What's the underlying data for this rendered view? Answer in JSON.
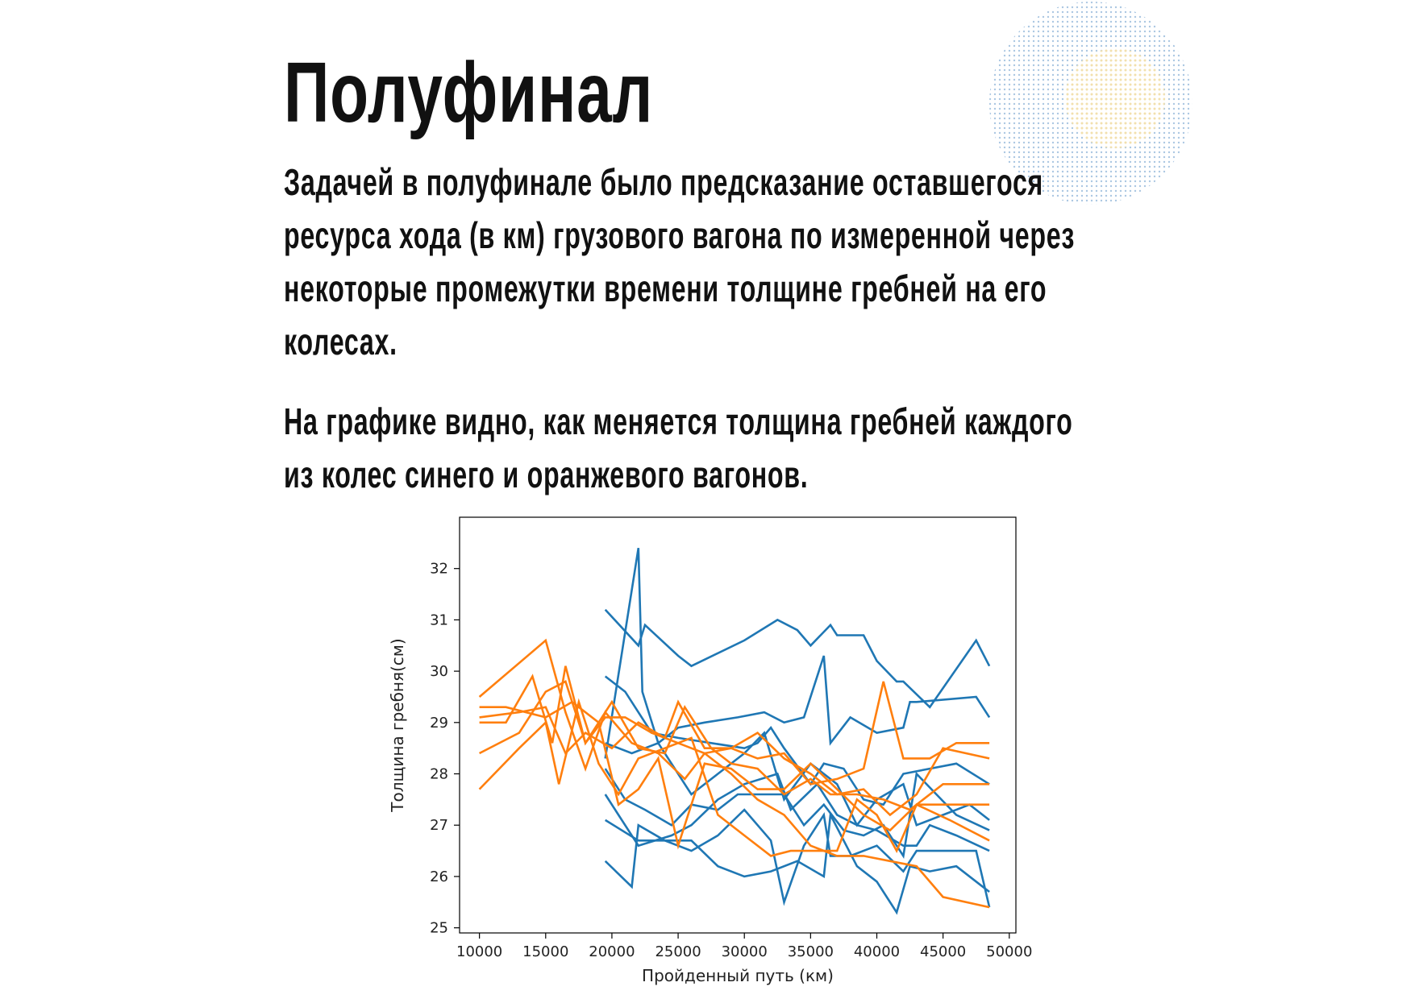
{
  "slide": {
    "title": "Полуфинал",
    "paragraph1": "Задачей в полуфинале было предсказание оставшегося ресурса хода (в км) грузового вагона по измеренной через некоторые промежутки времени толщине гребней на его колесах.",
    "paragraph2": "На графике видно, как меняется толщина гребней каждого из колес синего и оранжевого вагонов."
  },
  "chart_data": {
    "type": "line",
    "title": "",
    "xlabel": "Пройденный путь (км)",
    "ylabel": "Толщина гребня(см)",
    "xlim": [
      8500,
      50500
    ],
    "ylim": [
      24.9,
      33.0
    ],
    "xticks": [
      10000,
      15000,
      20000,
      25000,
      30000,
      35000,
      40000,
      45000,
      50000
    ],
    "yticks": [
      25,
      26,
      27,
      28,
      29,
      30,
      31,
      32
    ],
    "grid": false,
    "legend": "none",
    "colors": {
      "blue": "#1f77b4",
      "orange": "#ff7f0e"
    },
    "series": [
      {
        "color": "blue",
        "points": [
          [
            19500,
            31.2
          ],
          [
            22000,
            30.5
          ],
          [
            22500,
            30.9
          ],
          [
            25000,
            30.3
          ],
          [
            26000,
            30.1
          ],
          [
            30000,
            30.6
          ],
          [
            32500,
            31.0
          ],
          [
            34000,
            30.8
          ],
          [
            35000,
            30.5
          ],
          [
            36500,
            30.9
          ],
          [
            37000,
            30.7
          ],
          [
            39000,
            30.7
          ],
          [
            40000,
            30.2
          ],
          [
            41500,
            29.8
          ],
          [
            42000,
            29.8
          ],
          [
            44000,
            29.3
          ],
          [
            47500,
            30.6
          ],
          [
            48500,
            30.1
          ]
        ]
      },
      {
        "color": "blue",
        "points": [
          [
            19500,
            28.3
          ],
          [
            22000,
            32.4
          ],
          [
            22300,
            29.6
          ],
          [
            23500,
            28.6
          ],
          [
            25000,
            28.9
          ],
          [
            27000,
            29.0
          ],
          [
            29500,
            29.1
          ],
          [
            31500,
            29.2
          ],
          [
            33000,
            29.0
          ],
          [
            34500,
            29.1
          ],
          [
            36000,
            30.3
          ],
          [
            36500,
            28.6
          ],
          [
            38000,
            29.1
          ],
          [
            40000,
            28.8
          ],
          [
            42000,
            28.9
          ],
          [
            42500,
            29.4
          ],
          [
            43000,
            29.4
          ],
          [
            47500,
            29.5
          ],
          [
            48500,
            29.1
          ]
        ]
      },
      {
        "color": "blue",
        "points": [
          [
            19500,
            29.9
          ],
          [
            21000,
            29.6
          ],
          [
            23000,
            28.8
          ],
          [
            25000,
            28.7
          ],
          [
            27500,
            28.6
          ],
          [
            30000,
            28.5
          ],
          [
            31000,
            28.6
          ],
          [
            32000,
            28.9
          ],
          [
            33000,
            28.5
          ],
          [
            35000,
            27.8
          ],
          [
            36000,
            28.2
          ],
          [
            37500,
            28.1
          ],
          [
            39000,
            27.5
          ],
          [
            40500,
            27.4
          ],
          [
            42000,
            28.0
          ],
          [
            44000,
            28.1
          ],
          [
            46000,
            28.2
          ],
          [
            48500,
            27.8
          ]
        ]
      },
      {
        "color": "blue",
        "points": [
          [
            19500,
            28.6
          ],
          [
            21500,
            28.4
          ],
          [
            23500,
            28.6
          ],
          [
            26000,
            27.6
          ],
          [
            28000,
            28.0
          ],
          [
            30000,
            28.4
          ],
          [
            31500,
            28.8
          ],
          [
            33000,
            27.5
          ],
          [
            35000,
            28.2
          ],
          [
            37000,
            27.8
          ],
          [
            38500,
            27.0
          ],
          [
            40000,
            27.5
          ],
          [
            42000,
            27.8
          ],
          [
            43000,
            27.0
          ],
          [
            45000,
            27.2
          ],
          [
            47000,
            27.4
          ],
          [
            48500,
            27.1
          ]
        ]
      },
      {
        "color": "blue",
        "points": [
          [
            19500,
            27.6
          ],
          [
            20500,
            27.2
          ],
          [
            22000,
            26.6
          ],
          [
            24500,
            26.8
          ],
          [
            26000,
            27.0
          ],
          [
            28000,
            27.5
          ],
          [
            30000,
            27.8
          ],
          [
            32500,
            28.0
          ],
          [
            33500,
            27.3
          ],
          [
            35500,
            27.8
          ],
          [
            37000,
            27.2
          ],
          [
            38500,
            27.0
          ],
          [
            40000,
            26.9
          ],
          [
            42000,
            26.6
          ],
          [
            43000,
            26.6
          ],
          [
            44000,
            27.0
          ],
          [
            46000,
            26.8
          ],
          [
            48500,
            26.5
          ]
        ]
      },
      {
        "color": "blue",
        "points": [
          [
            19500,
            28.1
          ],
          [
            21000,
            27.5
          ],
          [
            22500,
            27.3
          ],
          [
            24500,
            27.0
          ],
          [
            26000,
            27.4
          ],
          [
            28000,
            27.3
          ],
          [
            29500,
            27.6
          ],
          [
            31000,
            27.6
          ],
          [
            33000,
            27.6
          ],
          [
            34500,
            27.0
          ],
          [
            36000,
            27.4
          ],
          [
            37500,
            26.9
          ],
          [
            39000,
            26.8
          ],
          [
            40500,
            27.0
          ],
          [
            42000,
            26.4
          ],
          [
            43000,
            28.0
          ],
          [
            44500,
            27.6
          ],
          [
            46000,
            27.2
          ],
          [
            48500,
            26.9
          ]
        ]
      },
      {
        "color": "blue",
        "points": [
          [
            19500,
            26.3
          ],
          [
            21500,
            25.8
          ],
          [
            22000,
            27.0
          ],
          [
            24000,
            26.7
          ],
          [
            26000,
            26.5
          ],
          [
            28000,
            26.8
          ],
          [
            30000,
            27.3
          ],
          [
            32000,
            26.7
          ],
          [
            33000,
            25.5
          ],
          [
            34500,
            26.6
          ],
          [
            36000,
            27.2
          ],
          [
            36500,
            26.4
          ],
          [
            38000,
            26.4
          ],
          [
            40000,
            26.6
          ],
          [
            42000,
            26.1
          ],
          [
            43000,
            26.5
          ],
          [
            45000,
            26.5
          ],
          [
            47500,
            26.5
          ],
          [
            48500,
            25.4
          ]
        ]
      },
      {
        "color": "blue",
        "points": [
          [
            19500,
            27.1
          ],
          [
            22000,
            26.7
          ],
          [
            24500,
            26.7
          ],
          [
            26000,
            26.7
          ],
          [
            28000,
            26.2
          ],
          [
            30000,
            26.0
          ],
          [
            32000,
            26.1
          ],
          [
            34000,
            26.3
          ],
          [
            36000,
            26.0
          ],
          [
            36500,
            27.2
          ],
          [
            38500,
            26.2
          ],
          [
            40000,
            25.9
          ],
          [
            41500,
            25.3
          ],
          [
            42500,
            26.2
          ],
          [
            44000,
            26.1
          ],
          [
            46000,
            26.2
          ],
          [
            48000,
            25.8
          ],
          [
            48500,
            25.7
          ]
        ]
      },
      {
        "color": "orange",
        "points": [
          [
            10000,
            29.5
          ],
          [
            15000,
            30.6
          ],
          [
            16500,
            29.2
          ],
          [
            18000,
            28.1
          ],
          [
            19500,
            29.2
          ],
          [
            21500,
            28.6
          ],
          [
            23500,
            28.4
          ],
          [
            25500,
            27.9
          ],
          [
            27000,
            28.4
          ],
          [
            29000,
            28.5
          ],
          [
            31000,
            28.3
          ],
          [
            33000,
            28.4
          ],
          [
            35000,
            27.8
          ],
          [
            37000,
            27.9
          ],
          [
            39000,
            28.1
          ],
          [
            40500,
            29.8
          ],
          [
            42000,
            28.3
          ],
          [
            44000,
            28.3
          ],
          [
            46000,
            28.6
          ],
          [
            48500,
            28.6
          ]
        ]
      },
      {
        "color": "orange",
        "points": [
          [
            10000,
            29.1
          ],
          [
            13000,
            29.2
          ],
          [
            15000,
            29.3
          ],
          [
            16500,
            28.4
          ],
          [
            18000,
            28.8
          ],
          [
            20000,
            28.5
          ],
          [
            22000,
            29.0
          ],
          [
            24000,
            28.7
          ],
          [
            25000,
            29.4
          ],
          [
            27000,
            28.5
          ],
          [
            29000,
            28.5
          ],
          [
            31000,
            28.8
          ],
          [
            33000,
            28.3
          ],
          [
            35000,
            28.0
          ],
          [
            37000,
            27.6
          ],
          [
            39000,
            27.7
          ],
          [
            41000,
            27.2
          ],
          [
            43000,
            27.6
          ],
          [
            45000,
            28.5
          ],
          [
            48500,
            28.3
          ]
        ]
      },
      {
        "color": "orange",
        "points": [
          [
            10000,
            29.0
          ],
          [
            12000,
            29.0
          ],
          [
            14000,
            29.9
          ],
          [
            15500,
            28.6
          ],
          [
            16500,
            30.1
          ],
          [
            18000,
            28.6
          ],
          [
            20000,
            29.4
          ],
          [
            22000,
            28.5
          ],
          [
            24000,
            28.4
          ],
          [
            25500,
            29.3
          ],
          [
            27500,
            28.5
          ],
          [
            29000,
            28.2
          ],
          [
            31000,
            28.1
          ],
          [
            33000,
            27.6
          ],
          [
            35000,
            27.9
          ],
          [
            36500,
            27.6
          ],
          [
            38500,
            27.6
          ],
          [
            40500,
            27.5
          ],
          [
            42500,
            27.3
          ],
          [
            45000,
            27.8
          ],
          [
            48500,
            27.8
          ]
        ]
      },
      {
        "color": "orange",
        "points": [
          [
            10000,
            29.3
          ],
          [
            12000,
            29.3
          ],
          [
            15000,
            29.1
          ],
          [
            17000,
            29.4
          ],
          [
            19000,
            29.0
          ],
          [
            20500,
            27.4
          ],
          [
            22000,
            27.7
          ],
          [
            23500,
            28.3
          ],
          [
            25000,
            26.6
          ],
          [
            27000,
            28.2
          ],
          [
            29000,
            28.1
          ],
          [
            31000,
            27.7
          ],
          [
            33000,
            27.7
          ],
          [
            35000,
            28.2
          ],
          [
            37000,
            27.7
          ],
          [
            39000,
            27.2
          ],
          [
            41000,
            26.9
          ],
          [
            43000,
            27.4
          ],
          [
            45000,
            27.4
          ],
          [
            48500,
            27.4
          ]
        ]
      },
      {
        "color": "orange",
        "points": [
          [
            10000,
            27.7
          ],
          [
            13000,
            28.5
          ],
          [
            15000,
            29.0
          ],
          [
            16000,
            27.8
          ],
          [
            17500,
            29.4
          ],
          [
            19000,
            28.2
          ],
          [
            20500,
            27.6
          ],
          [
            22000,
            28.3
          ],
          [
            24000,
            28.5
          ],
          [
            26000,
            28.7
          ],
          [
            28000,
            27.2
          ],
          [
            30000,
            26.8
          ],
          [
            32000,
            26.4
          ],
          [
            33500,
            26.5
          ],
          [
            35000,
            26.5
          ],
          [
            37000,
            26.5
          ],
          [
            38500,
            27.5
          ],
          [
            40000,
            27.2
          ],
          [
            41500,
            26.5
          ],
          [
            43000,
            27.4
          ],
          [
            45500,
            27.1
          ],
          [
            48500,
            26.7
          ]
        ]
      },
      {
        "color": "orange",
        "points": [
          [
            10000,
            28.4
          ],
          [
            13000,
            28.8
          ],
          [
            15000,
            29.6
          ],
          [
            16500,
            29.8
          ],
          [
            18000,
            28.6
          ],
          [
            19500,
            29.1
          ],
          [
            21000,
            29.1
          ],
          [
            23000,
            28.8
          ],
          [
            25000,
            28.6
          ],
          [
            27000,
            28.4
          ],
          [
            29000,
            28.0
          ],
          [
            31000,
            27.5
          ],
          [
            33000,
            27.2
          ],
          [
            35000,
            26.6
          ],
          [
            37000,
            26.4
          ],
          [
            39000,
            26.4
          ],
          [
            41000,
            26.3
          ],
          [
            43000,
            26.2
          ],
          [
            45000,
            25.6
          ],
          [
            48500,
            25.4
          ]
        ]
      }
    ]
  }
}
